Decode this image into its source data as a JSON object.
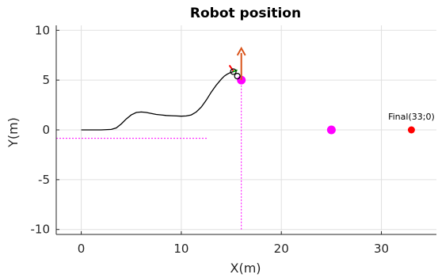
{
  "chart_data": {
    "type": "line",
    "title": "Robot position",
    "xlabel": "X(m)",
    "ylabel": "Y(m)",
    "xlim": [
      -2.5,
      35.5
    ],
    "ylim": [
      -10.5,
      10.5
    ],
    "xticks": [
      0,
      10,
      20,
      30
    ],
    "yticks": [
      10,
      5,
      0,
      -5,
      -10
    ],
    "ytick_labels": [
      "10",
      "5",
      "0",
      "-5",
      "-10"
    ],
    "grid": true,
    "colors": {
      "path": "#000000",
      "obstacle": "#ff00ff",
      "final": "#ff0000",
      "arrow": "#d95319",
      "robot_heading": "#ff0000",
      "robot_green": "#00c000",
      "guide": "#ff00ff",
      "grid": "#e0e0e0",
      "axis": "#262626"
    },
    "path": {
      "x": [
        0,
        1,
        2,
        3,
        3.5,
        4,
        4.5,
        5,
        5.5,
        6,
        6.5,
        7,
        7.5,
        8,
        8.5,
        9,
        9.5,
        10,
        10.5,
        11,
        11.5,
        12,
        12.5,
        13,
        13.5,
        14,
        14.3,
        14.6,
        14.9,
        15.2
      ],
      "y": [
        0,
        0,
        0,
        0.05,
        0.2,
        0.6,
        1.1,
        1.5,
        1.75,
        1.8,
        1.75,
        1.65,
        1.55,
        1.5,
        1.45,
        1.42,
        1.4,
        1.38,
        1.4,
        1.5,
        1.8,
        2.3,
        3.0,
        3.8,
        4.5,
        5.1,
        5.4,
        5.6,
        5.75,
        5.85
      ]
    },
    "obstacles": [
      {
        "x": 16,
        "y": 5
      },
      {
        "x": 25,
        "y": 0
      }
    ],
    "final": {
      "x": 33,
      "y": 0,
      "label": "Final(33;0)"
    },
    "robot": {
      "x": 15.2,
      "y": 5.85,
      "x2": 15.6,
      "y2": 5.4
    },
    "heading_arrow": {
      "x": 16,
      "y": 5,
      "x_end": 16,
      "y_end": 8.2
    },
    "guides": {
      "horizontal": {
        "y": -0.85,
        "x_from": -2.5,
        "x_to": 12.7
      },
      "vertical": {
        "x": 16,
        "y_from": -10,
        "y_to": 5.5
      }
    }
  }
}
